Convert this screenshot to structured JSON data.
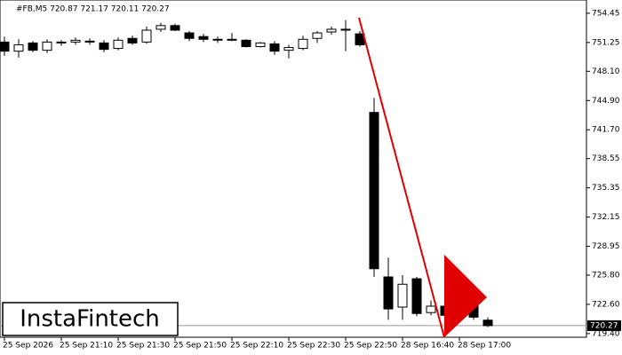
{
  "chart_data": {
    "type": "candlestick",
    "title": "#FB,M5  720.87 721.17 720.11 720.27",
    "brand": "InstaFintech",
    "categories": [
      "25 Sep 2026",
      null,
      null,
      null,
      "25 Sep 21:10",
      null,
      null,
      null,
      "25 Sep 21:30",
      null,
      null,
      null,
      "25 Sep 21:50",
      null,
      null,
      null,
      "25 Sep 22:10",
      null,
      null,
      null,
      "25 Sep 22:30",
      null,
      null,
      null,
      "25 Sep 22:50",
      null,
      null,
      null,
      "28 Sep 16:40",
      null,
      null,
      null,
      "28 Sep 17:00",
      null,
      null
    ],
    "open": [
      751.3,
      750.3,
      751.2,
      750.4,
      751.2,
      751.3,
      751.4,
      751.2,
      750.6,
      751.7,
      751.3,
      752.7,
      753.1,
      752.3,
      751.9,
      751.6,
      751.6,
      751.5,
      750.8,
      751.1,
      750.4,
      750.6,
      751.7,
      752.4,
      752.7,
      752.2,
      743.6,
      725.6,
      722.3,
      725.4,
      721.7,
      722.4,
      721.6,
      723.8,
      720.87
    ],
    "high": [
      751.9,
      751.6,
      751.4,
      751.6,
      751.5,
      751.8,
      751.7,
      751.5,
      751.8,
      752.0,
      753.0,
      753.4,
      753.3,
      752.5,
      752.2,
      751.9,
      752.3,
      751.6,
      751.3,
      751.4,
      751.0,
      752.0,
      752.5,
      753.0,
      753.7,
      752.5,
      745.2,
      727.7,
      725.8,
      725.6,
      723.0,
      722.8,
      725.5,
      724.0,
      721.17
    ],
    "low": [
      749.8,
      749.6,
      750.2,
      750.1,
      750.9,
      751.0,
      751.0,
      750.2,
      750.4,
      751.0,
      751.1,
      752.4,
      752.5,
      751.4,
      751.3,
      751.2,
      751.4,
      750.7,
      750.7,
      749.9,
      749.5,
      750.4,
      751.2,
      752.1,
      750.3,
      750.8,
      725.6,
      720.9,
      720.9,
      721.3,
      721.4,
      721.2,
      721.1,
      720.9,
      720.11
    ],
    "close": [
      750.3,
      751.0,
      750.4,
      751.3,
      751.3,
      751.5,
      751.3,
      750.5,
      751.5,
      751.2,
      752.6,
      753.1,
      752.6,
      751.7,
      751.6,
      751.6,
      751.5,
      750.8,
      751.2,
      750.3,
      750.7,
      751.6,
      752.3,
      752.7,
      752.6,
      751.0,
      726.5,
      722.1,
      724.8,
      721.6,
      722.4,
      721.4,
      724.0,
      721.2,
      720.27
    ],
    "up_color": "#ffffff",
    "down_color": "#000000",
    "last_price": 720.27,
    "ylim": [
      719.0,
      755.9
    ],
    "yticks": [
      754.45,
      751.25,
      {
        "value": 748.1,
        "label": "748.10"
      },
      {
        "value": 744.9,
        "label": "744.90"
      },
      {
        "value": 741.7,
        "label": "741.70"
      },
      738.55,
      735.35,
      732.15,
      728.95,
      {
        "value": 725.8,
        "label": "725.80"
      },
      {
        "value": 722.6,
        "label": "722.60"
      },
      {
        "value": 719.4,
        "label": "719.40"
      }
    ]
  }
}
